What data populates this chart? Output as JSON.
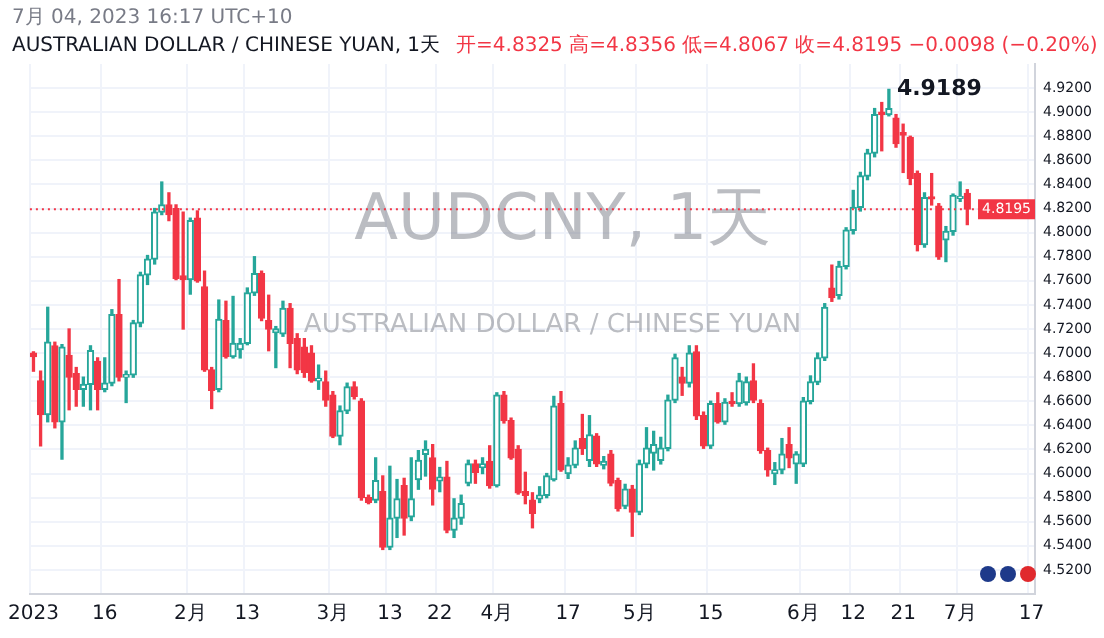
{
  "chart_data": {
    "type": "candlestick",
    "title": "AUDCNY, 1天",
    "subtitle": "AUSTRALIAN DOLLAR / CHINESE YUAN",
    "annotations": [
      "7月 04, 2023 16:17 UTC+10",
      "AUSTRALIAN DOLLAR / CHINESE YUAN, 1天",
      "开=4.8325 高=4.8356 低=4.8067 收=4.8195 −0.0098 (−0.20%)",
      "4.9189"
    ],
    "categories": [
      "2023",
      null,
      null,
      null,
      null,
      null,
      null,
      null,
      null,
      null,
      "16",
      null,
      null,
      null,
      null,
      null,
      null,
      null,
      null,
      null,
      null,
      null,
      "2月",
      null,
      null,
      null,
      null,
      null,
      null,
      null,
      "13",
      null,
      null,
      null,
      null,
      null,
      null,
      null,
      null,
      null,
      null,
      null,
      "3月",
      null,
      null,
      null,
      null,
      null,
      null,
      null,
      "13",
      null,
      null,
      null,
      null,
      null,
      null,
      "22",
      null,
      null,
      null,
      null,
      null,
      null,
      null,
      "4月",
      null,
      null,
      null,
      null,
      null,
      null,
      null,
      null,
      null,
      "17",
      null,
      null,
      null,
      null,
      null,
      null,
      null,
      null,
      null,
      "5月",
      null,
      null,
      null,
      null,
      null,
      null,
      null,
      null,
      null,
      "15",
      null,
      null,
      null,
      null,
      null,
      null,
      null,
      null,
      null,
      null,
      null,
      null,
      "6月",
      null,
      null,
      null,
      null,
      null,
      null,
      "12",
      null,
      null,
      null,
      null,
      null,
      null,
      "21",
      null,
      null,
      null,
      null,
      null,
      null,
      null,
      "7月",
      null,
      null,
      null,
      null,
      null,
      null,
      null,
      null,
      null,
      "17"
    ],
    "ohlc": [
      [
        4.7,
        4.701,
        4.685,
        4.697
      ],
      [
        4.677,
        4.685,
        4.623,
        4.649
      ],
      [
        4.649,
        4.738,
        4.643,
        4.709
      ],
      [
        4.706,
        4.709,
        4.638,
        4.643
      ],
      [
        4.643,
        4.707,
        4.612,
        4.705
      ],
      [
        4.698,
        4.72,
        4.653,
        4.68
      ],
      [
        4.683,
        4.688,
        4.656,
        4.67
      ],
      [
        4.67,
        4.68,
        4.656,
        4.674
      ],
      [
        4.674,
        4.706,
        4.653,
        4.702
      ],
      [
        4.693,
        4.696,
        4.653,
        4.67
      ],
      [
        4.67,
        4.696,
        4.668,
        4.675
      ],
      [
        4.675,
        4.736,
        4.673,
        4.732
      ],
      [
        4.732,
        4.761,
        4.677,
        4.68
      ],
      [
        4.68,
        4.685,
        4.659,
        4.682
      ],
      [
        4.682,
        4.727,
        4.68,
        4.725
      ],
      [
        4.725,
        4.767,
        4.722,
        4.765
      ],
      [
        4.765,
        4.781,
        4.757,
        4.778
      ],
      [
        4.778,
        4.82,
        4.774,
        4.817
      ],
      [
        4.817,
        4.842,
        4.815,
        4.823
      ],
      [
        4.823,
        4.833,
        4.81,
        4.815
      ],
      [
        4.82,
        4.823,
        4.761,
        4.762
      ],
      [
        4.764,
        4.817,
        4.72,
        4.761
      ],
      [
        4.761,
        4.812,
        4.749,
        4.81
      ],
      [
        4.812,
        4.818,
        4.759,
        4.76
      ],
      [
        4.755,
        4.768,
        4.685,
        4.686
      ],
      [
        4.686,
        4.688,
        4.654,
        4.669
      ],
      [
        4.67,
        4.744,
        4.668,
        4.728
      ],
      [
        4.727,
        4.743,
        4.696,
        4.697
      ],
      [
        4.697,
        4.747,
        4.696,
        4.708
      ],
      [
        4.703,
        4.712,
        4.696,
        4.708
      ],
      [
        4.708,
        4.754,
        4.707,
        4.75
      ],
      [
        4.75,
        4.78,
        4.748,
        4.766
      ],
      [
        4.766,
        4.768,
        4.727,
        4.729
      ],
      [
        4.727,
        4.748,
        4.702,
        4.72
      ],
      [
        4.717,
        4.722,
        4.688,
        4.72
      ],
      [
        4.716,
        4.743,
        4.714,
        4.737
      ],
      [
        4.737,
        4.741,
        4.688,
        4.708
      ],
      [
        4.712,
        4.716,
        4.683,
        4.686
      ],
      [
        4.705,
        4.712,
        4.68,
        4.684
      ],
      [
        4.7,
        4.706,
        4.676,
        4.677
      ],
      [
        4.677,
        4.69,
        4.67,
        4.679
      ],
      [
        4.676,
        4.685,
        4.656,
        4.661
      ],
      [
        4.665,
        4.668,
        4.63,
        4.631
      ],
      [
        4.631,
        4.656,
        4.624,
        4.652
      ],
      [
        4.652,
        4.675,
        4.65,
        4.672
      ],
      [
        4.672,
        4.676,
        4.662,
        4.664
      ],
      [
        4.66,
        4.662,
        4.578,
        4.58
      ],
      [
        4.58,
        4.582,
        4.575,
        4.576
      ],
      [
        4.578,
        4.613,
        4.576,
        4.594
      ],
      [
        4.585,
        4.598,
        4.537,
        4.539
      ],
      [
        4.539,
        4.606,
        4.537,
        4.563
      ],
      [
        4.563,
        4.595,
        4.547,
        4.579
      ],
      [
        4.59,
        4.596,
        4.549,
        4.563
      ],
      [
        4.564,
        4.613,
        4.561,
        4.579
      ],
      [
        4.595,
        4.619,
        4.587,
        4.611
      ],
      [
        4.616,
        4.627,
        4.598,
        4.62
      ],
      [
        4.613,
        4.624,
        4.574,
        4.587
      ],
      [
        4.594,
        4.605,
        4.585,
        4.597
      ],
      [
        4.597,
        4.61,
        4.551,
        4.553
      ],
      [
        4.553,
        4.579,
        4.547,
        4.563
      ],
      [
        4.563,
        4.582,
        4.558,
        4.575
      ],
      [
        4.592,
        4.611,
        4.59,
        4.608
      ],
      [
        4.608,
        4.611,
        4.592,
        4.601
      ],
      [
        4.605,
        4.613,
        4.6,
        4.608
      ],
      [
        4.61,
        4.623,
        4.588,
        4.59
      ],
      [
        4.59,
        4.667,
        4.589,
        4.665
      ],
      [
        4.665,
        4.668,
        4.642,
        4.644
      ],
      [
        4.644,
        4.646,
        4.612,
        4.613
      ],
      [
        4.62,
        4.623,
        4.583,
        4.584
      ],
      [
        4.585,
        4.601,
        4.575,
        4.582
      ],
      [
        4.578,
        4.584,
        4.555,
        4.567
      ],
      [
        4.579,
        4.589,
        4.576,
        4.582
      ],
      [
        4.582,
        4.6,
        4.58,
        4.598
      ],
      [
        4.595,
        4.664,
        4.594,
        4.656
      ],
      [
        4.658,
        4.668,
        4.602,
        4.603
      ],
      [
        4.6,
        4.613,
        4.596,
        4.607
      ],
      [
        4.607,
        4.627,
        4.605,
        4.621
      ],
      [
        4.629,
        4.649,
        4.616,
        4.621
      ],
      [
        4.611,
        4.648,
        4.606,
        4.632
      ],
      [
        4.631,
        4.633,
        4.606,
        4.608
      ],
      [
        4.607,
        4.614,
        4.604,
        4.61
      ],
      [
        4.616,
        4.619,
        4.59,
        4.592
      ],
      [
        4.594,
        4.596,
        4.569,
        4.571
      ],
      [
        4.573,
        4.591,
        4.571,
        4.587
      ],
      [
        4.587,
        4.59,
        4.548,
        4.568
      ],
      [
        4.568,
        4.611,
        4.566,
        4.608
      ],
      [
        4.608,
        4.638,
        4.605,
        4.621
      ],
      [
        4.617,
        4.635,
        4.603,
        4.624
      ],
      [
        4.611,
        4.63,
        4.608,
        4.621
      ],
      [
        4.621,
        4.665,
        4.619,
        4.661
      ],
      [
        4.661,
        4.699,
        4.659,
        4.696
      ],
      [
        4.68,
        4.688,
        4.665,
        4.675
      ],
      [
        4.675,
        4.706,
        4.672,
        4.7
      ],
      [
        4.701,
        4.706,
        4.645,
        4.648
      ],
      [
        4.648,
        4.651,
        4.621,
        4.623
      ],
      [
        4.623,
        4.66,
        4.621,
        4.658
      ],
      [
        4.658,
        4.667,
        4.642,
        4.643
      ],
      [
        4.643,
        4.662,
        4.641,
        4.659
      ],
      [
        4.659,
        4.667,
        4.656,
        4.658
      ],
      [
        4.658,
        4.683,
        4.656,
        4.677
      ],
      [
        4.659,
        4.68,
        4.657,
        4.676
      ],
      [
        4.677,
        4.691,
        4.659,
        4.661
      ],
      [
        4.658,
        4.661,
        4.617,
        4.619
      ],
      [
        4.619,
        4.621,
        4.598,
        4.603
      ],
      [
        4.6,
        4.609,
        4.591,
        4.603
      ],
      [
        4.603,
        4.629,
        4.6,
        4.616
      ],
      [
        4.624,
        4.638,
        4.605,
        4.613
      ],
      [
        4.608,
        4.618,
        4.592,
        4.616
      ],
      [
        4.608,
        4.663,
        4.606,
        4.66
      ],
      [
        4.66,
        4.681,
        4.658,
        4.676
      ],
      [
        4.676,
        4.7,
        4.674,
        4.696
      ],
      [
        4.696,
        4.741,
        4.694,
        4.738
      ],
      [
        4.754,
        4.773,
        4.743,
        4.746
      ],
      [
        4.748,
        4.776,
        4.745,
        4.772
      ],
      [
        4.772,
        4.804,
        4.77,
        4.802
      ],
      [
        4.802,
        4.835,
        4.799,
        4.821
      ],
      [
        4.821,
        4.85,
        4.818,
        4.847
      ],
      [
        4.847,
        4.869,
        4.844,
        4.866
      ],
      [
        4.866,
        4.903,
        4.863,
        4.898
      ],
      [
        4.9,
        4.908,
        4.868,
        4.898
      ],
      [
        4.898,
        4.9189,
        4.897,
        4.903
      ],
      [
        4.895,
        4.898,
        4.871,
        4.874
      ],
      [
        4.883,
        4.89,
        4.85,
        4.881
      ],
      [
        4.879,
        4.88,
        4.84,
        4.845
      ],
      [
        4.849,
        4.851,
        4.785,
        4.79
      ],
      [
        4.79,
        4.833,
        4.788,
        4.829
      ],
      [
        4.829,
        4.849,
        4.823,
        4.828
      ],
      [
        4.822,
        4.824,
        4.778,
        4.78
      ],
      [
        4.794,
        4.805,
        4.776,
        4.801
      ],
      [
        4.801,
        4.832,
        4.798,
        4.831
      ],
      [
        4.8285,
        4.842,
        4.826,
        4.8293
      ],
      [
        4.8325,
        4.8356,
        4.8067,
        4.8195
      ],
      null,
      null,
      null,
      null,
      null,
      null,
      null,
      null,
      null
    ],
    "ylim": [
      4.5,
      4.94
    ],
    "yticks": [
      {
        "value": 4.52,
        "label": "4.5200"
      },
      {
        "value": 4.54,
        "label": "4.5400"
      },
      {
        "value": 4.56,
        "label": "4.5600"
      },
      {
        "value": 4.58,
        "label": "4.5800"
      },
      {
        "value": 4.6,
        "label": "4.6000"
      },
      {
        "value": 4.62,
        "label": "4.6200"
      },
      {
        "value": 4.64,
        "label": "4.6400"
      },
      {
        "value": 4.66,
        "label": "4.6600"
      },
      {
        "value": 4.68,
        "label": "4.6800"
      },
      {
        "value": 4.7,
        "label": "4.7000"
      },
      {
        "value": 4.72,
        "label": "4.7200"
      },
      {
        "value": 4.74,
        "label": "4.7400"
      },
      {
        "value": 4.76,
        "label": "4.7600"
      },
      {
        "value": 4.78,
        "label": "4.7800"
      },
      {
        "value": 4.8,
        "label": "4.8000"
      },
      {
        "value": 4.82,
        "label": "4.8200"
      },
      {
        "value": 4.84,
        "label": "4.8400"
      },
      {
        "value": 4.86,
        "label": "4.8600"
      },
      {
        "value": 4.88,
        "label": "4.8800"
      },
      {
        "value": 4.9,
        "label": "4.9000"
      },
      {
        "value": 4.92,
        "label": "4.9200"
      }
    ],
    "ref_lines": [
      {
        "axis": "y",
        "value": 4.8195,
        "label": "4.8195",
        "color": "#f23645",
        "line_style": "dotted"
      }
    ],
    "grid": true
  }
}
